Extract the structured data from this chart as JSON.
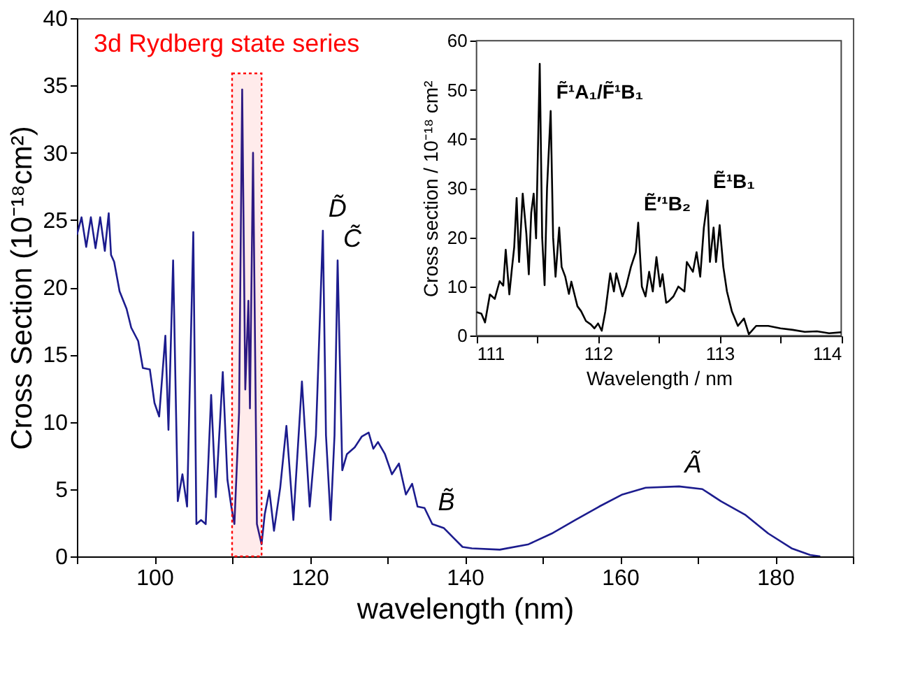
{
  "chart_data": [
    {
      "type": "line",
      "xlabel": "wavelength (nm)",
      "ylabel": "Cross Section (10⁻¹⁸cm²)",
      "xlim": [
        90,
        190
      ],
      "ylim": [
        0,
        40
      ],
      "xticks": [
        {
          "value": 90,
          "label": null
        },
        100,
        {
          "value": 110,
          "label": null
        },
        120,
        {
          "value": 130,
          "label": null
        },
        140,
        {
          "value": 150,
          "label": null
        },
        160,
        {
          "value": 170,
          "label": null
        },
        180,
        {
          "value": 190,
          "label": null
        }
      ],
      "yticks": [
        0,
        5,
        10,
        15,
        20,
        25,
        30,
        35,
        40
      ],
      "x": [
        90,
        90.6,
        91.2,
        91.8,
        92.4,
        93,
        93.6,
        94.1,
        94.4,
        94.8,
        95.5,
        96.4,
        97,
        97.9,
        98.5,
        99.4,
        100,
        100.6,
        101.4,
        101.8,
        102.4,
        103,
        103.6,
        104.2,
        105,
        105.4,
        106,
        106.6,
        107.3,
        107.9,
        108.8,
        109.4,
        109.9,
        110.3,
        110.9,
        111.3,
        111.7,
        112.1,
        112.3,
        112.7,
        113.2,
        113.8,
        114.2,
        114.8,
        115.4,
        116.2,
        117,
        117.9,
        119,
        120,
        120.8,
        121.7,
        122.1,
        122.7,
        123.2,
        123.6,
        124.2,
        124.8,
        125.8,
        126.7,
        127.6,
        128.2,
        128.8,
        129.7,
        130.6,
        131.5,
        132.4,
        133.2,
        133.9,
        134.8,
        135.8,
        137.3,
        138.5,
        139.7,
        140.9,
        144.5,
        148.2,
        151.2,
        154.2,
        157.3,
        160.3,
        163.3,
        167.6,
        170.6,
        173,
        176.1,
        179.1,
        182.1,
        184.5,
        185.8
      ],
      "series": [
        {
          "color": "#1c1c8e",
          "values": [
            23.9,
            25.2,
            23,
            25.2,
            22.9,
            25.2,
            22.7,
            25.5,
            22.4,
            21.9,
            19.7,
            18.4,
            17,
            16,
            14,
            13.9,
            11.4,
            10.4,
            16.4,
            9.4,
            22,
            4.1,
            6.1,
            3.7,
            24.1,
            2.4,
            2.7,
            2.4,
            12,
            4.4,
            13.7,
            5.7,
            3.7,
            2.4,
            10.7,
            34.7,
            12.4,
            19,
            11,
            30,
            2.4,
            0.9,
            3.1,
            4.9,
            1.9,
            5.1,
            9.7,
            2.7,
            13,
            3.7,
            9,
            24.2,
            9,
            2.7,
            9,
            22,
            6.4,
            7.6,
            8.1,
            8.9,
            9.2,
            8,
            8.5,
            7.6,
            6.1,
            6.9,
            4.6,
            5.4,
            3.7,
            3.6,
            2.4,
            2.1,
            1.4,
            0.7,
            0.6,
            0.5,
            0.9,
            1.7,
            2.7,
            3.7,
            4.6,
            5.1,
            5.2,
            5,
            4.1,
            3.1,
            1.7,
            0.6,
            0.1,
            0
          ]
        }
      ],
      "bands": [
        {
          "axis": "x",
          "from": 110,
          "to": 113.8,
          "color": "#ff0000"
        }
      ],
      "annotations": [
        "3d Rydberg state series",
        {
          "text": "D̃",
          "x": 121.7,
          "y": 24.2
        },
        {
          "text": "C̃",
          "x": 123.6,
          "y": 22
        },
        {
          "text": "B̃",
          "x": 135.8,
          "y": 2.4
        },
        {
          "text": "Ã",
          "x": 167.6,
          "y": 5.2
        }
      ]
    },
    {
      "type": "line",
      "xlabel": "Wavelength / nm",
      "ylabel": "Cross section / 10⁻¹⁸ cm²",
      "xlim": [
        111,
        114
      ],
      "ylim": [
        0,
        60
      ],
      "xticks": [
        111,
        {
          "value": 111.5,
          "label": null
        },
        112,
        {
          "value": 112.5,
          "label": null
        },
        113,
        {
          "value": 113.5,
          "label": null
        },
        114
      ],
      "yticks": [
        0,
        10,
        20,
        30,
        40,
        50,
        60
      ],
      "x": [
        111.0,
        111.04,
        111.07,
        111.11,
        111.15,
        111.19,
        111.22,
        111.24,
        111.27,
        111.29,
        111.31,
        111.33,
        111.35,
        111.38,
        111.41,
        111.43,
        111.45,
        111.47,
        111.49,
        111.52,
        111.54,
        111.56,
        111.58,
        111.61,
        111.63,
        111.65,
        111.68,
        111.7,
        111.73,
        111.76,
        111.78,
        111.83,
        111.86,
        111.9,
        111.94,
        111.97,
        112.0,
        112.03,
        112.06,
        112.1,
        112.13,
        112.15,
        112.2,
        112.23,
        112.27,
        112.31,
        112.33,
        112.36,
        112.39,
        112.42,
        112.45,
        112.48,
        112.51,
        112.53,
        112.56,
        112.58,
        112.62,
        112.66,
        112.71,
        112.73,
        112.78,
        112.81,
        112.84,
        112.87,
        112.9,
        112.92,
        112.95,
        112.97,
        113.0,
        113.03,
        113.06,
        113.1,
        113.15,
        113.2,
        113.24,
        113.3,
        113.4,
        113.5,
        113.6,
        113.7,
        113.8,
        113.9,
        114.0
      ],
      "series": [
        {
          "color": "#000000",
          "values": [
            4.8,
            4.5,
            2.7,
            8.4,
            7.5,
            11.1,
            10.2,
            17.5,
            8.4,
            13.4,
            18,
            28,
            15,
            28.9,
            20.7,
            12.5,
            25,
            28.9,
            19.8,
            55.3,
            20,
            10.3,
            30,
            45.7,
            20,
            12,
            22,
            14,
            12,
            8.5,
            11,
            6,
            5,
            3,
            2.3,
            1.5,
            2.5,
            1,
            5,
            12.7,
            9,
            12.7,
            8,
            10,
            14,
            17,
            23,
            10,
            8,
            13,
            9,
            16,
            10,
            12.5,
            6.7,
            7,
            8,
            10,
            9,
            15,
            13,
            17,
            12,
            22,
            27.5,
            15,
            22,
            15,
            22.5,
            14,
            9,
            5,
            2,
            3.5,
            0.3,
            2,
            2,
            1.5,
            1.2,
            0.8,
            0.9,
            0.5,
            0.7
          ]
        }
      ],
      "annotations": [
        {
          "text": "F̃¹A₁/F̃¹B₁",
          "x": 111.61,
          "y": 45.7
        },
        {
          "text": "Ẽ′¹B₂",
          "x": 112.33,
          "y": 23
        },
        {
          "text": "Ẽ¹B₁",
          "x": 112.9,
          "y": 27.5
        }
      ]
    }
  ]
}
